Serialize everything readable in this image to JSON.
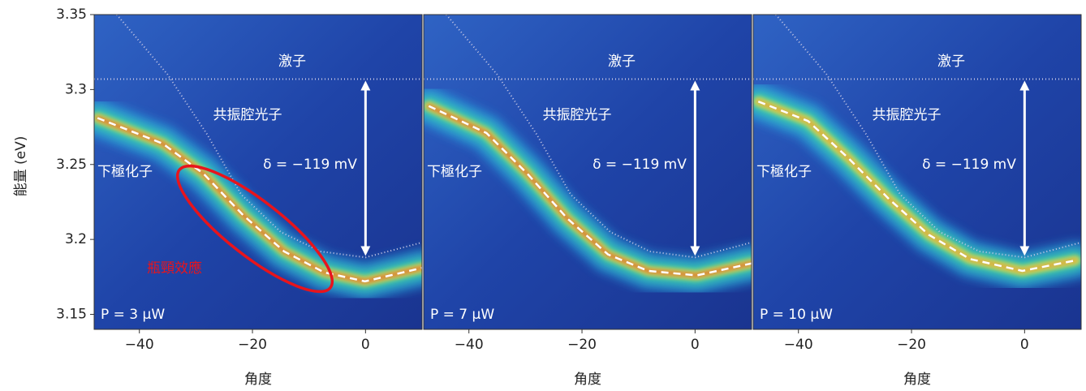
{
  "chart_data": [
    {
      "type": "line",
      "y_label": "能量 (eV)",
      "x_label": "角度",
      "power_label": "P = 3 μW",
      "annotations": [
        "激子",
        "共振腔光子",
        "下極化子",
        "δ = −119 mV"
      ],
      "bottleneck_label": "瓶頸效應",
      "xlim": [
        -48,
        10
      ],
      "ylim": [
        3.14,
        3.35
      ],
      "xticks": [
        {
          "value": -40,
          "label": "−40"
        },
        {
          "value": -20,
          "label": "−20"
        },
        0
      ],
      "yticks": [
        3.15,
        {
          "value": 3.2,
          "label": "3.2"
        },
        3.25,
        {
          "value": 3.3,
          "label": "3.3"
        },
        3.35
      ],
      "series": [
        {
          "color": "#ffffff",
          "x": [
            -47.4,
            -35.9,
            -28.7,
            -21.6,
            -14.4,
            -7.3,
            -0.1,
            10
          ],
          "values": [
            3.281,
            3.264,
            3.244,
            3.216,
            3.192,
            3.178,
            3.172,
            3.181
          ]
        },
        {
          "color": "#c8c8e6",
          "x": [
            -44,
            -35,
            -28,
            -22,
            -15,
            -8,
            0,
            10
          ],
          "values": [
            3.35,
            3.31,
            3.27,
            3.23,
            3.205,
            3.192,
            3.188,
            3.198
          ]
        },
        {
          "color": "#c8c8e6",
          "x": [
            -48,
            10
          ],
          "values": [
            3.307,
            3.307
          ]
        }
      ]
    },
    {
      "type": "line",
      "x_label": "角度",
      "power_label": "P = 7 μW",
      "annotations": [
        "激子",
        "共振腔光子",
        "下極化子",
        "δ = −119 mV"
      ],
      "xlim": [
        -48,
        10
      ],
      "ylim": [
        3.14,
        3.35
      ],
      "xticks": [
        {
          "value": -40,
          "label": "−40"
        },
        {
          "value": -20,
          "label": "−20"
        },
        0
      ],
      "series": [
        {
          "color": "#ffffff",
          "x": [
            -47.1,
            -36.9,
            -29.7,
            -22.6,
            -15.4,
            -8.3,
            0.3,
            10
          ],
          "values": [
            3.289,
            3.271,
            3.244,
            3.214,
            3.19,
            3.179,
            3.176,
            3.184
          ]
        },
        {
          "color": "#c8c8e6",
          "x": [
            -44,
            -35,
            -28,
            -22,
            -15,
            -8,
            0,
            10
          ],
          "values": [
            3.35,
            3.31,
            3.27,
            3.23,
            3.205,
            3.192,
            3.188,
            3.198
          ]
        },
        {
          "color": "#c8c8e6",
          "x": [
            -48,
            10
          ],
          "values": [
            3.307,
            3.307
          ]
        }
      ]
    },
    {
      "type": "line",
      "x_label": "角度",
      "power_label": "P = 10 μW",
      "annotations": [
        "激子",
        "共振腔光子",
        "下極化子",
        "δ = −119 mV"
      ],
      "xlim": [
        -48,
        10
      ],
      "ylim": [
        3.14,
        3.35
      ],
      "xticks": [
        {
          "value": -40,
          "label": "−40"
        },
        {
          "value": -20,
          "label": "−20"
        },
        0
      ],
      "series": [
        {
          "color": "#ffffff",
          "x": [
            -47.1,
            -38.3,
            -31.1,
            -24,
            -16.9,
            -9.7,
            -0.4,
            9
          ],
          "values": [
            3.292,
            3.279,
            3.254,
            3.227,
            3.203,
            3.187,
            3.179,
            3.186
          ]
        },
        {
          "color": "#c8c8e6",
          "x": [
            -44,
            -35,
            -28,
            -22,
            -15,
            -8,
            0,
            10
          ],
          "values": [
            3.35,
            3.31,
            3.27,
            3.23,
            3.205,
            3.192,
            3.188,
            3.198
          ]
        },
        {
          "color": "#c8c8e6",
          "x": [
            -48,
            10
          ],
          "values": [
            3.307,
            3.307
          ]
        }
      ]
    }
  ]
}
